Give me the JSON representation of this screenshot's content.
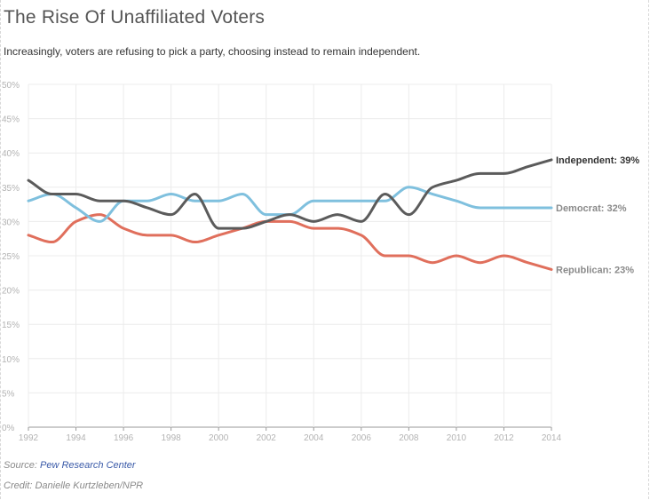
{
  "header": {
    "title": "The Rise Of Unaffiliated Voters",
    "subtitle": "Increasingly, voters are refusing to pick a party, choosing instead to remain independent."
  },
  "footer": {
    "source_prefix": "Source:",
    "source_name": "Pew Research Center",
    "credit": "Credit: Danielle Kurtzleben/NPR"
  },
  "chart_data": {
    "type": "line",
    "x": [
      1992,
      1993,
      1994,
      1995,
      1996,
      1997,
      1998,
      1999,
      2000,
      2001,
      2002,
      2003,
      2004,
      2005,
      2006,
      2007,
      2008,
      2009,
      2010,
      2011,
      2012,
      2013,
      2014
    ],
    "xticks": [
      "1992",
      "1994",
      "1996",
      "1998",
      "2000",
      "2002",
      "2004",
      "2006",
      "2008",
      "2010",
      "2012",
      "2014"
    ],
    "yticks": [
      "0%",
      "5%",
      "10%",
      "15%",
      "20%",
      "25%",
      "30%",
      "35%",
      "40%",
      "45%",
      "50%"
    ],
    "ylim": [
      0,
      50
    ],
    "xlim": [
      1992,
      2014
    ],
    "grid": true,
    "series": [
      {
        "name": "Independent",
        "end_label": "Independent: 39%",
        "color": "#5b5b5b",
        "label_color": "#333333",
        "values": [
          36,
          34,
          34,
          33,
          33,
          32,
          31,
          34,
          29,
          29,
          30,
          31,
          30,
          31,
          30,
          34,
          31,
          35,
          36,
          37,
          37,
          38,
          39
        ]
      },
      {
        "name": "Democrat",
        "end_label": "Democrat: 32%",
        "color": "#7fc0de",
        "label_color": "#8a8a8a",
        "values": [
          33,
          34,
          32,
          30,
          33,
          33,
          34,
          33,
          33,
          34,
          31,
          31,
          33,
          33,
          33,
          33,
          35,
          34,
          33,
          32,
          32,
          32,
          32
        ]
      },
      {
        "name": "Republican",
        "end_label": "Republican: 23%",
        "color": "#e06f5c",
        "label_color": "#8a8a8a",
        "values": [
          28,
          27,
          30,
          31,
          29,
          28,
          28,
          27,
          28,
          29,
          30,
          30,
          29,
          29,
          28,
          25,
          25,
          24,
          25,
          24,
          25,
          24,
          23
        ]
      }
    ]
  }
}
